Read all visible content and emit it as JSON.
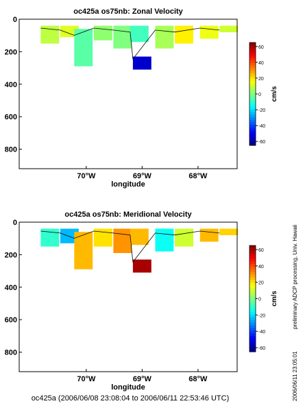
{
  "chart_data": [
    {
      "type": "heatmap",
      "title": "oc425a os75nb: Zonal Velocity",
      "xlabel": "longitude",
      "ylabel": "",
      "x_ticks": [
        "70°W",
        "69°W",
        "68°W"
      ],
      "y_ticks": [
        "0",
        "200",
        "400",
        "600",
        "800"
      ],
      "xlim": [
        -71.2,
        -67.3
      ],
      "ylim": [
        920,
        0
      ],
      "colorbar": {
        "label": "cm/s",
        "range": [
          -65,
          65
        ],
        "ticks": [
          "60",
          "40",
          "20",
          "0",
          "-20",
          "-40",
          "-60"
        ]
      },
      "data": [
        {
          "x": -70.65,
          "y": [
            40,
            150
          ],
          "value": 8
        },
        {
          "x": -70.3,
          "y": [
            40,
            110
          ],
          "value": 12
        },
        {
          "x": -70.05,
          "y": [
            60,
            290
          ],
          "value": -5
        },
        {
          "x": -69.7,
          "y": [
            40,
            130
          ],
          "value": 2
        },
        {
          "x": -69.35,
          "y": [
            40,
            180
          ],
          "value": 0
        },
        {
          "x": -69.05,
          "y": [
            40,
            140
          ],
          "value": -8
        },
        {
          "x": -69.0,
          "y": [
            230,
            310
          ],
          "value": -55
        },
        {
          "x": -68.6,
          "y": [
            40,
            180
          ],
          "value": 5
        },
        {
          "x": -68.25,
          "y": [
            40,
            150
          ],
          "value": 18
        },
        {
          "x": -67.8,
          "y": [
            40,
            120
          ],
          "value": 14
        },
        {
          "x": -67.45,
          "y": [
            40,
            80
          ],
          "value": 10
        }
      ],
      "contours": [
        0
      ]
    },
    {
      "type": "heatmap",
      "title": "oc425a os75nb: Meridional Velocity",
      "xlabel": "longitude",
      "ylabel": "",
      "x_ticks": [
        "70°W",
        "69°W",
        "68°W"
      ],
      "y_ticks": [
        "0",
        "200",
        "400",
        "600",
        "800"
      ],
      "xlim": [
        -71.2,
        -67.3
      ],
      "ylim": [
        920,
        0
      ],
      "colorbar": {
        "label": "cm/s",
        "range": [
          -65,
          65
        ],
        "ticks": [
          "60",
          "40",
          "20",
          "0",
          "-20",
          "-40",
          "-60"
        ]
      },
      "data": [
        {
          "x": -70.65,
          "y": [
            40,
            150
          ],
          "value": -10
        },
        {
          "x": -70.3,
          "y": [
            40,
            130
          ],
          "value": -25
        },
        {
          "x": -70.05,
          "y": [
            60,
            290
          ],
          "value": 25
        },
        {
          "x": -69.7,
          "y": [
            40,
            150
          ],
          "value": 20
        },
        {
          "x": -69.35,
          "y": [
            40,
            190
          ],
          "value": 30
        },
        {
          "x": -69.05,
          "y": [
            40,
            140
          ],
          "value": 25
        },
        {
          "x": -69.0,
          "y": [
            230,
            310
          ],
          "value": 60
        },
        {
          "x": -68.6,
          "y": [
            40,
            180
          ],
          "value": -15
        },
        {
          "x": -68.25,
          "y": [
            40,
            150
          ],
          "value": 10
        },
        {
          "x": -67.8,
          "y": [
            40,
            120
          ],
          "value": 25
        },
        {
          "x": -67.45,
          "y": [
            40,
            80
          ],
          "value": 22
        }
      ],
      "contours": [
        0
      ]
    }
  ],
  "footer": "oc425a (2006/06/08 23:08:04 to 2006/06/11 22:53:46 UTC)",
  "side_note": "preliminary ADCP processing,   Univ. Hawaii",
  "side_date": "2006/06/11 23:05:01"
}
